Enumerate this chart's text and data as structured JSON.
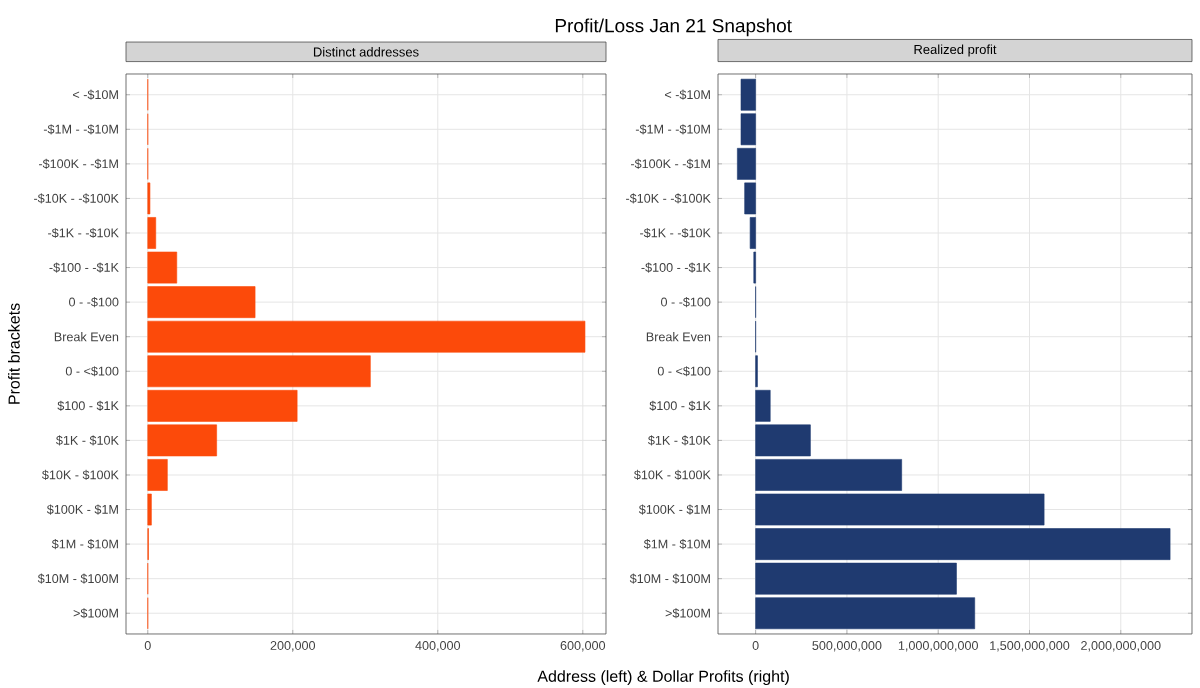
{
  "chart_data": [
    {
      "type": "bar",
      "orientation": "horizontal",
      "title": "Profit/Loss Jan 21 Snapshot",
      "subtitle": "Distinct addresses",
      "xlabel": "Address (left) & Dollar Profits (right)",
      "ylabel": "Profit brackets",
      "categories": [
        "< -$10M",
        "-$1M - -$10M",
        "-$100K - -$1M",
        "-$10K - -$100K",
        "-$1K - -$10K",
        "-$100 - -$1K",
        "0 - -$100",
        "Break Even",
        "0 - <$100",
        "$100 - $1K",
        "$1K - $10K",
        "$10K - $100K",
        "$100K - $1M",
        "$1M - $10M",
        "$10M - $100M",
        ">$100M"
      ],
      "values": [
        0,
        0,
        0,
        3000,
        11000,
        40000,
        148000,
        603000,
        307000,
        206000,
        95000,
        27000,
        5000,
        1000,
        0,
        0
      ],
      "color": "#fc4a0a",
      "xlim": [
        -30000,
        632000
      ],
      "xticks": [
        {
          "value": 0,
          "label": "0"
        },
        {
          "value": 200000,
          "label": "200,000"
        },
        {
          "value": 400000,
          "label": "400,000"
        },
        {
          "value": 600000,
          "label": "600,000"
        }
      ],
      "grid": true
    },
    {
      "type": "bar",
      "orientation": "horizontal",
      "subtitle": "Realized profit",
      "categories": [
        "< -$10M",
        "-$1M - -$10M",
        "-$100K - -$1M",
        "-$10K - -$100K",
        "-$1K - -$10K",
        "-$100 - -$1K",
        "0 - -$100",
        "Break Even",
        "0 - <$100",
        "$100 - $1K",
        "$1K - $10K",
        "$10K - $100K",
        "$100K - $1M",
        "$1M - $10M",
        "$10M - $100M",
        ">$100M"
      ],
      "values": [
        -80000000,
        -80000000,
        -100000000,
        -60000000,
        -30000000,
        -10000000,
        0,
        0,
        10000000,
        80000000,
        300000000,
        800000000,
        1580000000,
        2270000000,
        1100000000,
        1200000000
      ],
      "color": "#1f3a70",
      "xlim": [
        -206000000,
        2390000000
      ],
      "xticks": [
        {
          "value": 0,
          "label": "0"
        },
        {
          "value": 500000000,
          "label": "500,000,000"
        },
        {
          "value": 1000000000,
          "label": "1,000,000,000"
        },
        {
          "value": 1500000000,
          "label": "1,500,000,000"
        },
        {
          "value": 2000000000,
          "label": "2,000,000,000"
        }
      ],
      "grid": true
    }
  ]
}
